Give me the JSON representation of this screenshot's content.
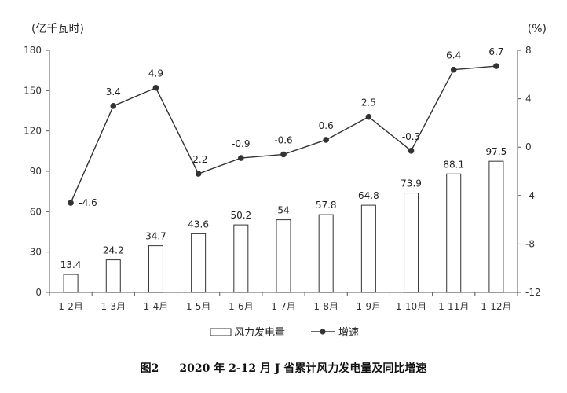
{
  "chart_data": {
    "type": "bar",
    "categories": [
      "1-2月",
      "1-3月",
      "1-4月",
      "1-5月",
      "1-6月",
      "1-7月",
      "1-8月",
      "1-9月",
      "1-10月",
      "1-11月",
      "1-12月"
    ],
    "series": [
      {
        "name": "风力发电量",
        "type": "bar",
        "axis": "left",
        "values": [
          13.4,
          24.2,
          34.7,
          43.6,
          50.2,
          54,
          57.8,
          64.8,
          73.9,
          88.1,
          97.5
        ],
        "labels": [
          "13.4",
          "24.2",
          "34.7",
          "43.6",
          "50.2",
          "54",
          "57.8",
          "64.8",
          "73.9",
          "88.1",
          "97.5"
        ]
      },
      {
        "name": "增速",
        "type": "line",
        "axis": "right",
        "values": [
          -4.6,
          3.4,
          4.9,
          -2.2,
          -0.9,
          -0.6,
          0.6,
          2.5,
          -0.3,
          6.4,
          6.7
        ],
        "labels": [
          "-4.6",
          "3.4",
          "4.9",
          "-2.2",
          "-0.9",
          "-0.6",
          "0.6",
          "2.5",
          "-0.3",
          "6.4",
          "6.7"
        ]
      }
    ],
    "yleft": {
      "unit": "(亿千瓦时)",
      "min": 0,
      "max": 180,
      "ticks": [
        0,
        30,
        60,
        90,
        120,
        150,
        180
      ]
    },
    "yright": {
      "unit": "(%)",
      "min": -12,
      "max": 8,
      "ticks": [
        -12,
        -8,
        -4,
        0,
        4,
        8
      ]
    },
    "legend_position": "bottom-center",
    "grid": false
  },
  "caption": {
    "number": "图2",
    "text": "2020 年 2-12 月 J 省累计风力发电量及同比增速"
  },
  "colors": {
    "bar_fill": "#ffffff",
    "bar_stroke": "#333333",
    "line": "#333333",
    "marker": "#333333",
    "axis": "#555555"
  }
}
